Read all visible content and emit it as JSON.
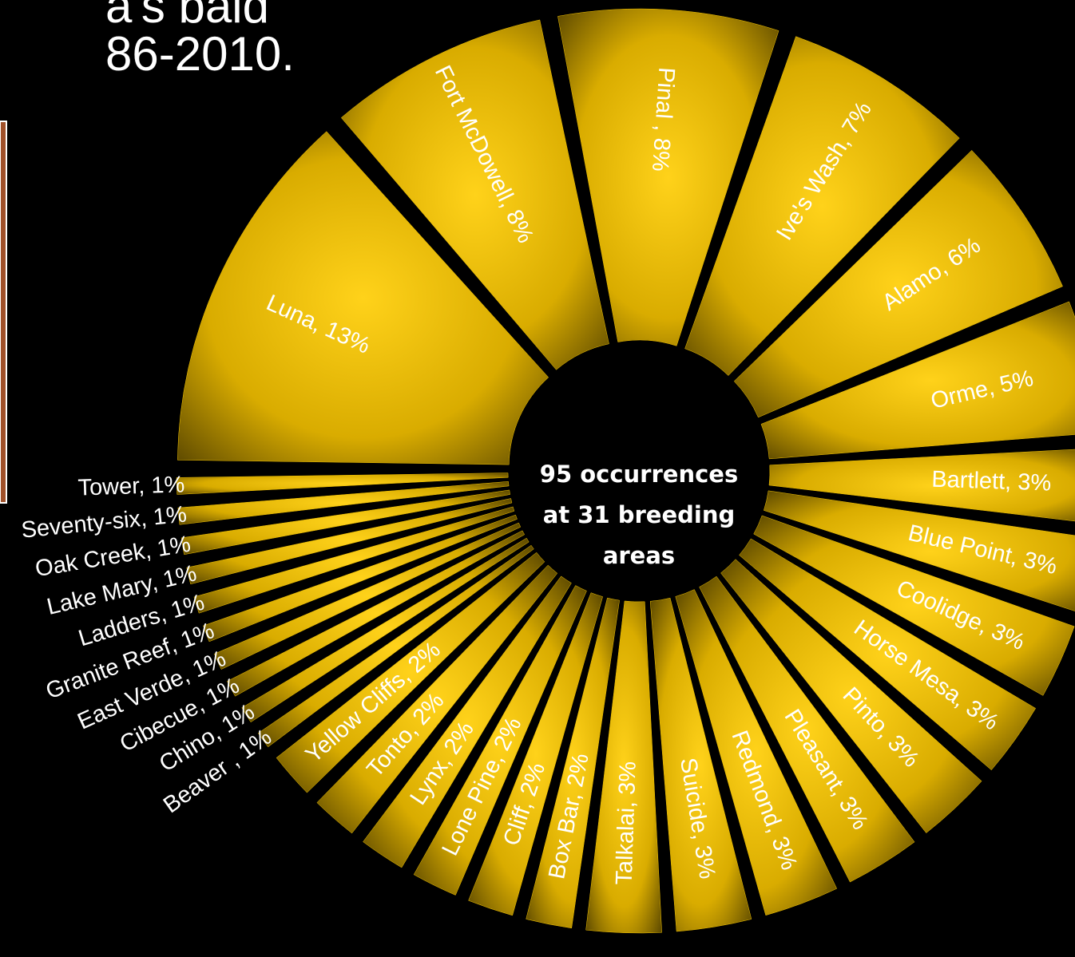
{
  "title_lines": [
    "a's bald",
    "86-2010."
  ],
  "chart_data": {
    "type": "pie",
    "center_text": [
      "95 occurrences",
      "at 31 breeding",
      "areas"
    ],
    "categories": [
      "Luna",
      "Fort McDowell",
      "Pinal",
      "Ive's Wash",
      "Alamo",
      "Orme",
      "Bartlett",
      "Blue Point",
      "Coolidge",
      "Horse Mesa",
      "Pinto",
      "Pleasant",
      "Redmond",
      "Suicide",
      "Talkalai",
      "Box Bar",
      "Cliff",
      "Lone Pine",
      "Lynx",
      "Tonto",
      "Yellow Cliffs",
      "Beaver",
      "Chino",
      "Cibecue",
      "East Verde",
      "Granite Reef",
      "Ladders",
      "Lake Mary",
      "Oak Creek",
      "Seventy-six",
      "Tower"
    ],
    "values": [
      13,
      8,
      8,
      7,
      6,
      5,
      3,
      3,
      3,
      3,
      3,
      3,
      3,
      3,
      3,
      2,
      2,
      2,
      2,
      2,
      2,
      1,
      1,
      1,
      1,
      1,
      1,
      1,
      1,
      1,
      1
    ],
    "value_labels": [
      "Luna, 13%",
      "Fort McDowell, 8%",
      "Pinal , 8%",
      "Ive's Wash, 7%",
      "Alamo, 6%",
      "Orme, 5%",
      "Bartlett, 3%",
      "Blue Point, 3%",
      "Coolidge, 3%",
      "Horse Mesa, 3%",
      "Pinto, 3%",
      "Pleasant, 3%",
      "Redmond, 3%",
      "Suicide, 3%",
      "Talkalai, 3%",
      "Box Bar, 2%",
      "Cliff, 2%",
      "Lone Pine, 2%",
      "Lynx, 2%",
      "Tonto, 2%",
      "Yellow Cliffs, 2%",
      "Beaver , 1%",
      "Chino, 1%",
      "Cibecue, 1%",
      "East Verde, 1%",
      "Granite Reef, 1%",
      "Ladders, 1%",
      "Lake Mary, 1%",
      "Oak Creek, 1%",
      "Seventy-six, 1%",
      "Tower, 1%"
    ],
    "color": "#f2c200"
  }
}
